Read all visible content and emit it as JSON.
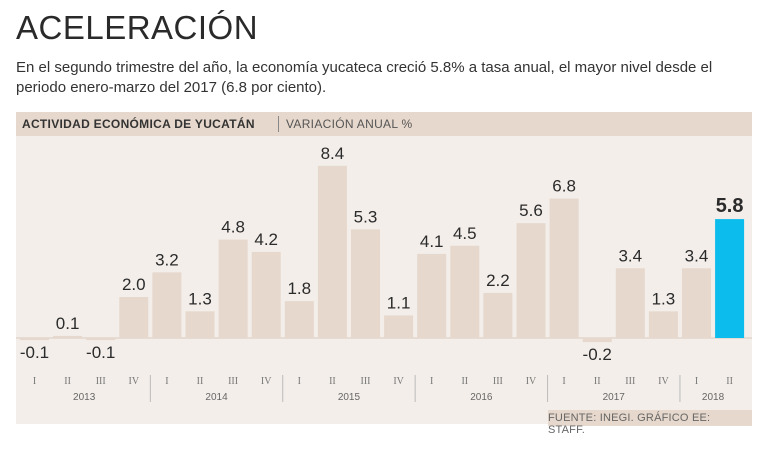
{
  "header": {
    "title": "ACELERACIÓN",
    "subtitle": "En el segundo trimestre del año, la economía yucateca creció 5.8% a tasa anual, el mayor nivel desde el periodo enero-marzo del 2017 (6.8 por ciento)."
  },
  "panel": {
    "label": "ACTIVIDAD ECONÓMICA DE YUCATÁN",
    "unit": "VARIACIÓN ANUAL %"
  },
  "source": "FUENTE: INEGI. GRÁFICO EE: STAFF.",
  "colors": {
    "bar": "#e6d8cc",
    "highlight": "#0bbcec",
    "panel": "#f3eeea"
  },
  "chart_data": {
    "type": "bar",
    "title": "ACTIVIDAD ECONÓMICA DE YUCATÁN",
    "ylabel": "VARIACIÓN ANUAL %",
    "xlabel": "",
    "ylim": [
      -0.5,
      9
    ],
    "categories": [
      "I",
      "II",
      "III",
      "IV",
      "I",
      "II",
      "III",
      "IV",
      "I",
      "II",
      "III",
      "IV",
      "I",
      "II",
      "III",
      "IV",
      "I",
      "II",
      "III",
      "IV",
      "I",
      "II"
    ],
    "years": [
      {
        "label": "2013",
        "count": 4
      },
      {
        "label": "2014",
        "count": 4
      },
      {
        "label": "2015",
        "count": 4
      },
      {
        "label": "2016",
        "count": 4
      },
      {
        "label": "2017",
        "count": 4
      },
      {
        "label": "2018",
        "count": 2
      }
    ],
    "values": [
      -0.1,
      0.1,
      -0.1,
      2.0,
      3.2,
      1.3,
      4.8,
      4.2,
      1.8,
      8.4,
      5.3,
      1.1,
      4.1,
      4.5,
      2.2,
      5.6,
      6.8,
      -0.2,
      3.4,
      1.3,
      3.4,
      5.8
    ],
    "value_labels": [
      "-0.1",
      "0.1",
      "-0.1",
      "2.0",
      "3.2",
      "1.3",
      "4.8",
      "4.2",
      "1.8",
      "8.4",
      "5.3",
      "1.1",
      "4.1",
      "4.5",
      "2.2",
      "5.6",
      "6.8",
      "-0.2",
      "3.4",
      "1.3",
      "3.4",
      "5.8"
    ],
    "highlight_index": 21
  }
}
